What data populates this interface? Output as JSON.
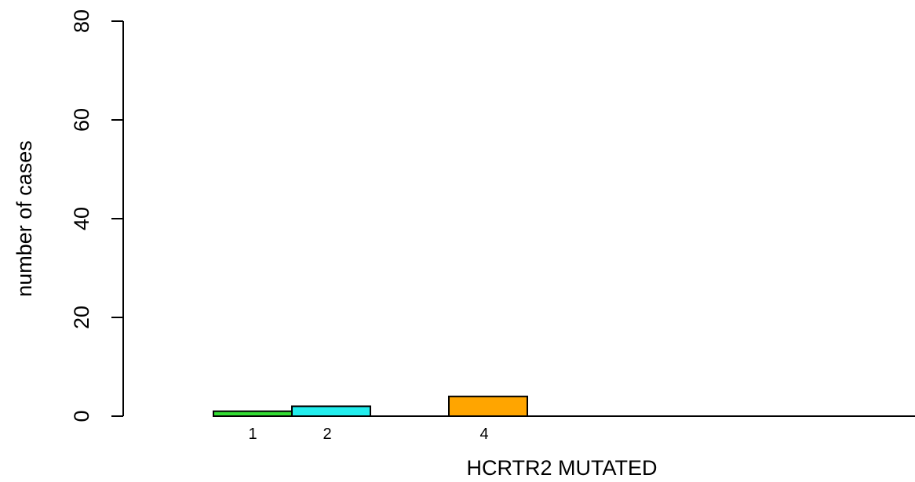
{
  "chart_data": {
    "type": "bar",
    "xlabel": "HCRTR2 MUTATED",
    "ylabel": "number of cases",
    "ylim": [
      0,
      80
    ],
    "yticks": [
      0,
      20,
      40,
      60,
      80
    ],
    "categories": [
      "1",
      "2",
      "",
      "4",
      "",
      "",
      "",
      ""
    ],
    "values": [
      1,
      2,
      0,
      4,
      0,
      0,
      0,
      0
    ],
    "colors": [
      "#33dd33",
      "#22eeee",
      "#ffffff",
      "#ffa500",
      "#ffffff",
      "#ffffff",
      "#ffffff",
      "#ffffff"
    ],
    "grid": false,
    "legend": "none"
  }
}
